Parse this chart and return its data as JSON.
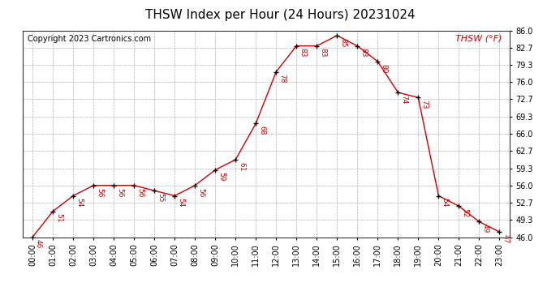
{
  "title": "THSW Index per Hour (24 Hours) 20231024",
  "copyright": "Copyright 2023 Cartronics.com",
  "legend_label": "THSW (°F)",
  "hours": [
    0,
    1,
    2,
    3,
    4,
    5,
    6,
    7,
    8,
    9,
    10,
    11,
    12,
    13,
    14,
    15,
    16,
    17,
    18,
    19,
    20,
    21,
    22,
    23
  ],
  "values": [
    46,
    51,
    54,
    56,
    56,
    56,
    55,
    54,
    56,
    59,
    61,
    68,
    78,
    83,
    83,
    85,
    83,
    80,
    74,
    73,
    54,
    52,
    49,
    47
  ],
  "x_labels": [
    "00:00",
    "01:00",
    "02:00",
    "03:00",
    "04:00",
    "05:00",
    "06:00",
    "07:00",
    "08:00",
    "09:00",
    "10:00",
    "11:00",
    "12:00",
    "13:00",
    "14:00",
    "15:00",
    "16:00",
    "17:00",
    "18:00",
    "19:00",
    "20:00",
    "21:00",
    "22:00",
    "23:00"
  ],
  "y_ticks": [
    46.0,
    49.3,
    52.7,
    56.0,
    59.3,
    62.7,
    66.0,
    69.3,
    72.7,
    76.0,
    79.3,
    82.7,
    86.0
  ],
  "y_tick_labels": [
    "46.0",
    "49.3",
    "52.7",
    "56.0",
    "59.3",
    "62.7",
    "66.0",
    "69.3",
    "72.7",
    "76.0",
    "79.3",
    "82.7",
    "86.0"
  ],
  "ylim": [
    46.0,
    86.0
  ],
  "xlim": [
    -0.5,
    23.5
  ],
  "line_color": "#cc0000",
  "marker_color": "#000000",
  "label_color": "#cc0000",
  "title_color": "#000000",
  "copyright_color": "#000000",
  "legend_color": "#cc0000",
  "bg_color": "#ffffff",
  "grid_color": "#b0b0b0",
  "title_fontsize": 11,
  "copyright_fontsize": 7,
  "legend_fontsize": 8,
  "label_fontsize": 6.5,
  "tick_fontsize": 7
}
